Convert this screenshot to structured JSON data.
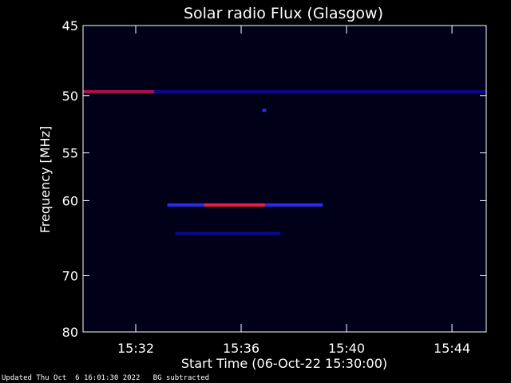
{
  "chart_data": {
    "type": "heatmap",
    "title": "Solar radio Flux (Glasgow)",
    "xlabel": "Start Time (06-Oct-22 15:30:00)",
    "ylabel": "Frequency [MHz]",
    "x_unit": "minutes after 15:30:00",
    "xlim": [
      0,
      15.3
    ],
    "x_ticks": [
      {
        "value": 2,
        "label": "15:32"
      },
      {
        "value": 6,
        "label": "15:36"
      },
      {
        "value": 10,
        "label": "15:40"
      },
      {
        "value": 14,
        "label": "15:44"
      }
    ],
    "ylim": [
      80,
      45
    ],
    "y_scale": "inverse",
    "y_ticks": [
      {
        "value": 45,
        "label": "45"
      },
      {
        "value": 50,
        "label": "50"
      },
      {
        "value": 55,
        "label": "55"
      },
      {
        "value": 60,
        "label": "60"
      },
      {
        "value": 70,
        "label": "70"
      },
      {
        "value": 80,
        "label": "80"
      }
    ],
    "colormap": [
      "#000018",
      "#0a0a9a",
      "#3030ff",
      "#c01040",
      "#ff2020"
    ],
    "features": [
      {
        "name": "interference-line-50mhz",
        "freq": 49.7,
        "t_start": 0.0,
        "t_end": 15.3,
        "intensity": 0.3
      },
      {
        "name": "interference-segment-50mhz",
        "freq": 49.7,
        "t_start": 0.0,
        "t_end": 2.7,
        "intensity": 0.65
      },
      {
        "name": "interference-spot-51mhz",
        "freq": 51.2,
        "t_start": 6.8,
        "t_end": 6.95,
        "intensity": 0.6
      },
      {
        "name": "narrowband-emission-60mhz",
        "freq": 60.5,
        "t_start": 3.2,
        "t_end": 9.1,
        "intensity": 0.6
      },
      {
        "name": "narrowband-core-60mhz",
        "freq": 60.5,
        "t_start": 4.6,
        "t_end": 6.9,
        "intensity": 1.0
      },
      {
        "name": "faint-line-64mhz",
        "freq": 64.0,
        "t_start": 3.5,
        "t_end": 7.5,
        "intensity": 0.25
      }
    ]
  },
  "footer": {
    "updated": "Updated Thu Oct  6 16:01:30 2022",
    "note": "BG subtracted"
  }
}
